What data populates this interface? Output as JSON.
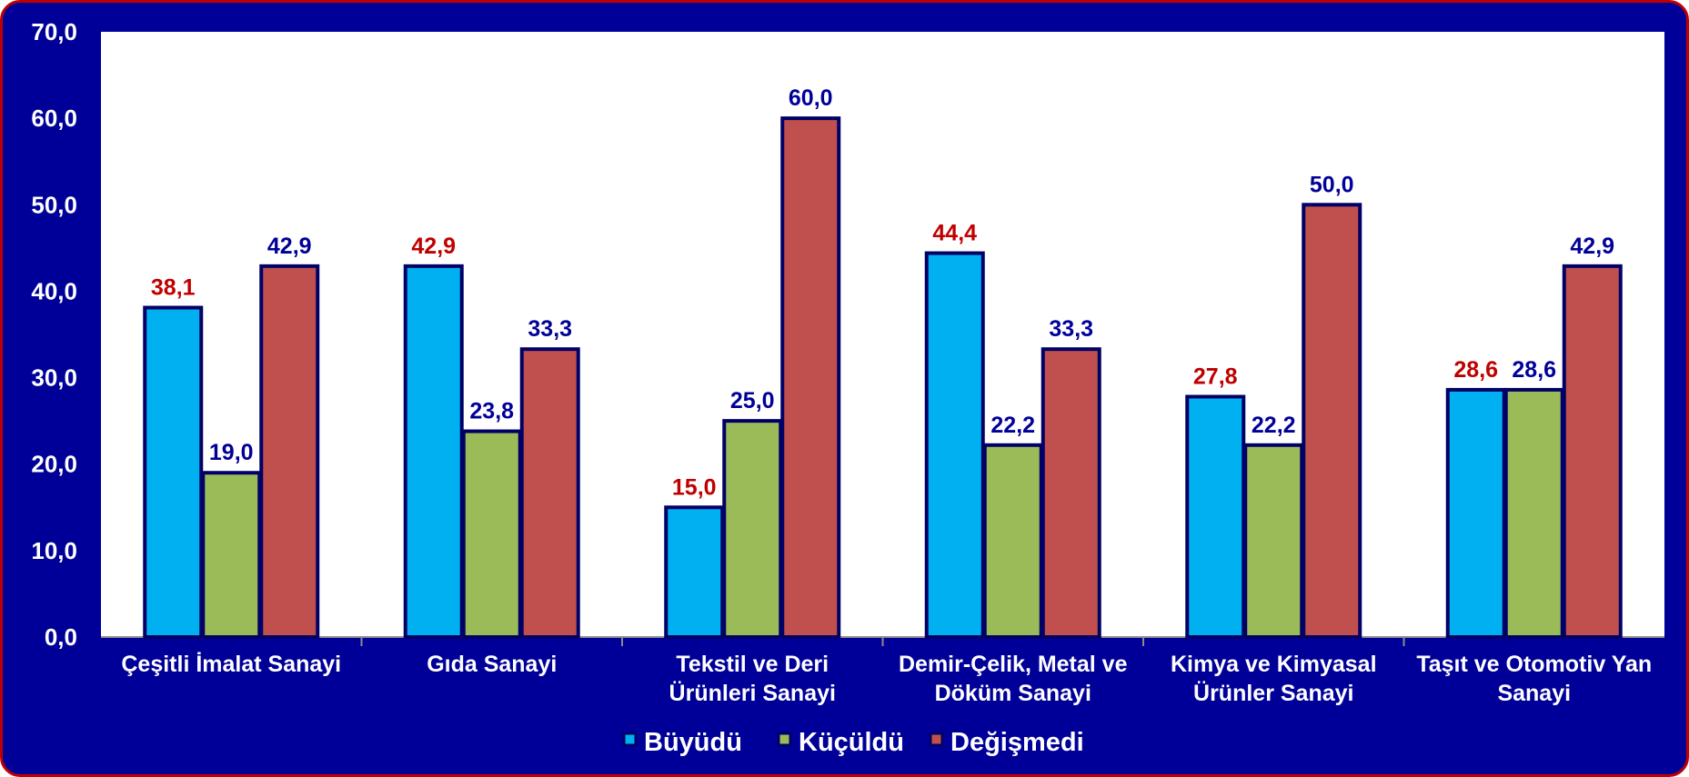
{
  "chart_data": {
    "type": "bar",
    "categories": [
      [
        "Çeşitli İmalat Sanayi"
      ],
      [
        "Gıda Sanayi"
      ],
      [
        "Tekstil ve Deri",
        "Ürünleri Sanayi"
      ],
      [
        "Demir-Çelik, Metal ve",
        "Döküm Sanayi"
      ],
      [
        "Kimya ve Kimyasal",
        "Ürünler Sanayi"
      ],
      [
        "Taşıt ve Otomotiv Yan",
        "Sanayi"
      ]
    ],
    "series": [
      {
        "name": "Büyüdü",
        "color": "#00b0f0",
        "values": [
          38.1,
          42.9,
          15.0,
          44.4,
          27.8,
          28.6
        ]
      },
      {
        "name": "Küçüldü",
        "color": "#9bbb59",
        "values": [
          19.0,
          23.8,
          25.0,
          22.2,
          22.2,
          28.6
        ]
      },
      {
        "name": "Değişmedi",
        "color": "#c0504d",
        "values": [
          42.9,
          33.3,
          60.0,
          33.3,
          50.0,
          42.9
        ]
      }
    ],
    "data_label_colors": [
      [
        "#c00000",
        "#000099",
        "#000099"
      ],
      [
        "#c00000",
        "#000099",
        "#000099"
      ],
      [
        "#c00000",
        "#000099",
        "#000099"
      ],
      [
        "#c00000",
        "#000099",
        "#000099"
      ],
      [
        "#c00000",
        "#000099",
        "#000099"
      ],
      [
        "#c00000",
        "#000099",
        "#000099"
      ]
    ],
    "ylim": [
      0,
      70
    ],
    "yticks": [
      0,
      10,
      20,
      30,
      40,
      50,
      60,
      70
    ],
    "tick_format": "comma-1-decimal",
    "grid": false,
    "legend_position": "bottom",
    "xlabel": "",
    "ylabel": "",
    "title": ""
  },
  "colors": {
    "frame_background": "#000099",
    "frame_border": "#c00000",
    "plot_background": "#ffffff",
    "bar_outline": "#000066"
  }
}
